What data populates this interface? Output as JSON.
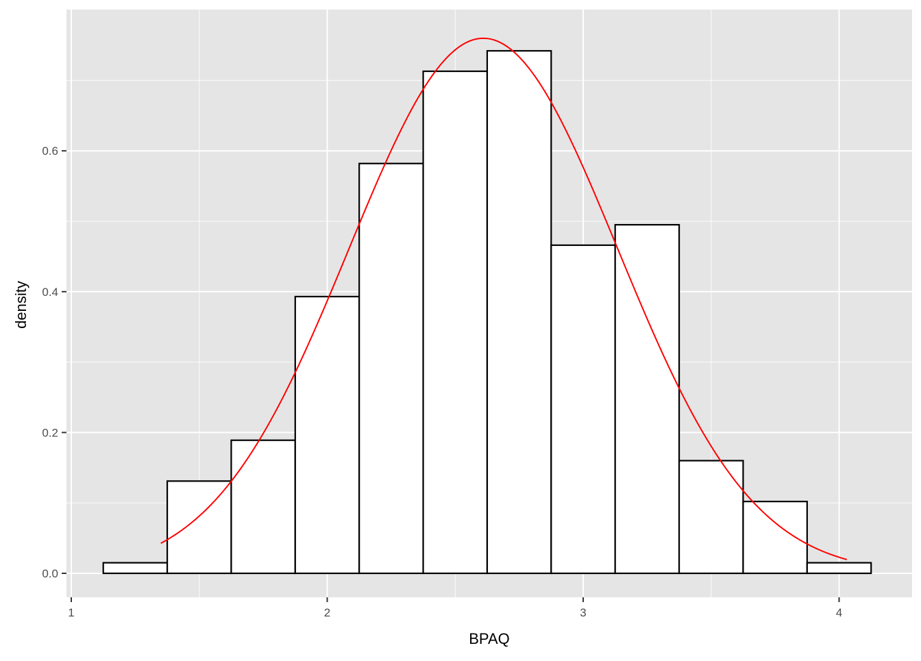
{
  "chart_data": {
    "type": "bar",
    "subtype": "histogram-with-density-curve",
    "xlabel": "BPAQ",
    "ylabel": "density",
    "xlim": [
      1,
      4.2
    ],
    "ylim": [
      -0.03,
      0.8
    ],
    "x_ticks": [
      1,
      2,
      3,
      4
    ],
    "y_ticks": [
      0.0,
      0.2,
      0.4,
      0.6
    ],
    "x_tick_labels": [
      "1",
      "2",
      "3",
      "4"
    ],
    "y_tick_labels": [
      "0.0",
      "0.2",
      "0.4",
      "0.6"
    ],
    "grid": true,
    "bin_width": 0.25,
    "bins": [
      {
        "x0": 1.125,
        "x1": 1.375,
        "density": 0.015
      },
      {
        "x0": 1.375,
        "x1": 1.625,
        "density": 0.131
      },
      {
        "x0": 1.625,
        "x1": 1.875,
        "density": 0.189
      },
      {
        "x0": 1.875,
        "x1": 2.125,
        "density": 0.393
      },
      {
        "x0": 2.125,
        "x1": 2.375,
        "density": 0.582
      },
      {
        "x0": 2.375,
        "x1": 2.625,
        "density": 0.713
      },
      {
        "x0": 2.625,
        "x1": 2.875,
        "density": 0.742
      },
      {
        "x0": 2.875,
        "x1": 3.125,
        "density": 0.466
      },
      {
        "x0": 3.125,
        "x1": 3.375,
        "density": 0.495
      },
      {
        "x0": 3.375,
        "x1": 3.625,
        "density": 0.16
      },
      {
        "x0": 3.625,
        "x1": 3.875,
        "density": 0.102
      },
      {
        "x0": 3.875,
        "x1": 4.125,
        "density": 0.015
      }
    ],
    "curve": {
      "kind": "normal",
      "mean": 2.61,
      "sd": 0.525,
      "x_range": [
        1.35,
        4.03
      ],
      "color": "#ff0000"
    },
    "colors": {
      "panel": "#e5e5e5",
      "grid_major": "#ffffff",
      "bar_fill": "#ffffff",
      "bar_stroke": "#000000",
      "axis_text": "#4d4d4d",
      "title_text": "#000000"
    }
  }
}
